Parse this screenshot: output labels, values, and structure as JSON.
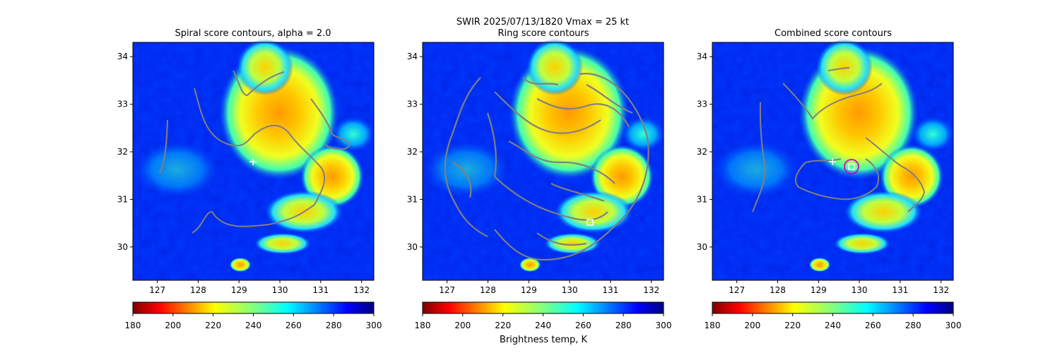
{
  "suptitle": "SWIR  2025/07/13/1820    Vmax = 25 kt",
  "colormap": [
    "#7f0000",
    "#ff0000",
    "#ff8000",
    "#ffff00",
    "#80ff80",
    "#00ffff",
    "#0080ff",
    "#0000ff",
    "#00007f"
  ],
  "contour_color": "#808080",
  "chart_data": [
    {
      "type": "heatmap",
      "title": "Spiral score contours, alpha =  2.0",
      "xlim": [
        126.4,
        132.3
      ],
      "ylim": [
        29.3,
        34.3
      ],
      "xticks": [
        "127",
        "128",
        "129",
        "130",
        "131",
        "132"
      ],
      "yticks": [
        "30",
        "31",
        "32",
        "33",
        "34"
      ],
      "markers": [
        {
          "symbol": "plus",
          "x": 129.3,
          "y": 31.78,
          "color": "#ffffff"
        }
      ],
      "colorbar": {
        "range": [
          180,
          300
        ],
        "ticks": [
          "180",
          "200",
          "220",
          "240",
          "260",
          "280",
          "300"
        ],
        "label": ""
      }
    },
    {
      "type": "heatmap",
      "title": "Ring score contours",
      "xlim": [
        126.4,
        132.3
      ],
      "ylim": [
        29.3,
        34.3
      ],
      "xticks": [
        "127",
        "128",
        "129",
        "130",
        "131",
        "132"
      ],
      "yticks": [
        "30",
        "31",
        "32",
        "33",
        "34"
      ],
      "markers": [
        {
          "symbol": "square",
          "x": 130.45,
          "y": 30.5,
          "color": "#ffffff"
        }
      ],
      "colorbar": {
        "range": [
          180,
          300
        ],
        "ticks": [
          "180",
          "200",
          "220",
          "240",
          "260",
          "280",
          "300"
        ],
        "label": "Brightness temp, K"
      }
    },
    {
      "type": "heatmap",
      "title": "Combined score contours",
      "xlim": [
        126.4,
        132.3
      ],
      "ylim": [
        29.3,
        34.3
      ],
      "xticks": [
        "127",
        "128",
        "129",
        "130",
        "131",
        "132"
      ],
      "yticks": [
        "30",
        "31",
        "32",
        "33",
        "34"
      ],
      "markers": [
        {
          "symbol": "plus",
          "x": 129.3,
          "y": 31.78,
          "color": "#ffffff"
        },
        {
          "symbol": "circle",
          "x": 129.75,
          "y": 31.65,
          "color": "#cc00cc"
        },
        {
          "symbol": "square",
          "x": 129.75,
          "y": 31.65,
          "color": "#ffffff"
        }
      ],
      "colorbar": {
        "range": [
          180,
          300
        ],
        "ticks": [
          "180",
          "200",
          "220",
          "240",
          "260",
          "280",
          "300"
        ],
        "label": ""
      }
    }
  ]
}
